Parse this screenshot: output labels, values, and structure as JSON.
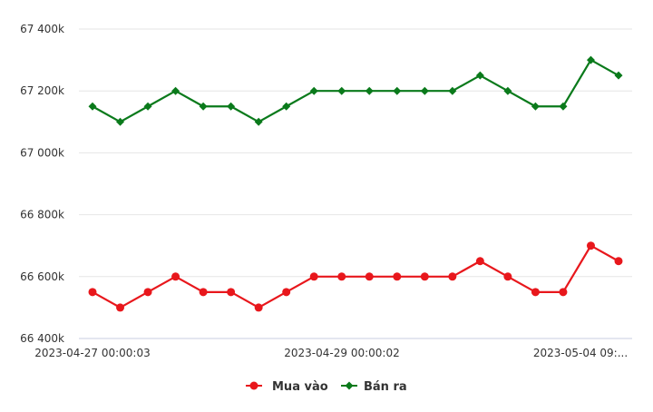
{
  "chart_data": {
    "type": "line",
    "x": [
      "2023-04-27 00:00:03",
      "",
      "",
      "",
      "",
      "",
      "",
      "",
      "2023-04-29 00:00:02",
      "",
      "",
      "",
      "",
      "",
      "",
      "",
      "",
      "",
      "2023-05-04 09:..",
      ""
    ],
    "xtick_labels": [
      "2023-04-27 00:00:03",
      "2023-04-29 00:00:02",
      "2023-05-04 09:..."
    ],
    "yticks": [
      "66 400k",
      "66 600k",
      "66 800k",
      "67 000k",
      "67 200k",
      "67 400k"
    ],
    "ylim": [
      66400000,
      67400000
    ],
    "grid": true,
    "legend_position": "bottom-center",
    "series": [
      {
        "name": "Mua vào",
        "color": "#e8171c",
        "marker": "circle",
        "values": [
          66550000,
          66500000,
          66550000,
          66600000,
          66550000,
          66550000,
          66500000,
          66550000,
          66600000,
          66600000,
          66600000,
          66600000,
          66600000,
          66600000,
          66650000,
          66600000,
          66550000,
          66550000,
          66700000,
          66650000
        ]
      },
      {
        "name": "Bán ra",
        "color": "#0a7a1b",
        "marker": "diamond",
        "values": [
          67150000,
          67100000,
          67150000,
          67200000,
          67150000,
          67150000,
          67100000,
          67150000,
          67200000,
          67200000,
          67200000,
          67200000,
          67200000,
          67200000,
          67250000,
          67200000,
          67150000,
          67150000,
          67300000,
          67250000
        ]
      }
    ]
  }
}
